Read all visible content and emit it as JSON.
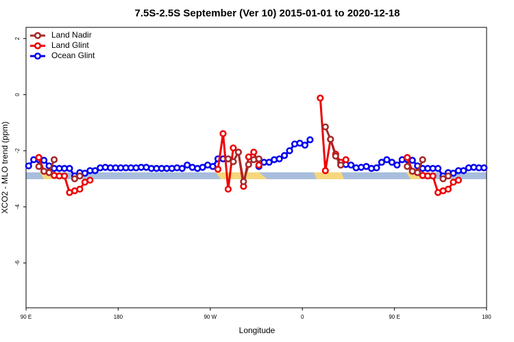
{
  "chart_data": {
    "type": "line",
    "title": "7.5S-2.5S September (Ver 10)   2015-01-01 to 2020-12-18",
    "x_label": "Longitude",
    "y_label": "XCO2 - MLO trend (ppm)",
    "xlim": [
      90,
      540
    ],
    "ylim": [
      -7.6,
      2.4
    ],
    "xticks": [
      {
        "value": 90,
        "label": "90 E"
      },
      180,
      {
        "value": 270,
        "label": "90 W"
      },
      {
        "value": 360,
        "label": "0"
      },
      {
        "value": 450,
        "label": "90 E"
      },
      {
        "value": 540,
        "label": "180"
      }
    ],
    "yticks": [
      -6,
      -4,
      -2,
      0,
      2
    ],
    "legend": "top-left",
    "x": [
      92.5,
      97.5,
      102.5,
      107.5,
      112.5,
      117.5,
      122.5,
      127.5,
      132.5,
      137.5,
      142.5,
      147.5,
      152.5,
      157.5,
      162.5,
      167.5,
      172.5,
      177.5,
      182.5,
      187.5,
      192.5,
      197.5,
      202.5,
      207.5,
      212.5,
      217.5,
      222.5,
      227.5,
      232.5,
      237.5,
      242.5,
      247.5,
      252.5,
      257.5,
      262.5,
      267.5,
      272.5,
      277.5,
      282.5,
      287.5,
      292.5,
      297.5,
      302.5,
      307.5,
      312.5,
      317.5,
      322.5,
      327.5,
      332.5,
      337.5,
      342.5,
      347.5,
      352.5,
      357.5,
      362.5,
      367.5,
      372.5,
      377.5,
      382.5,
      387.5,
      392.5,
      397.5,
      402.5,
      407.5,
      412.5,
      417.5,
      422.5,
      427.5,
      432.5,
      437.5,
      442.5,
      447.5,
      452.5,
      457.5,
      462.5,
      467.5,
      472.5,
      477.5,
      482.5,
      487.5,
      492.5,
      497.5,
      502.5,
      507.5,
      512.5,
      517.5,
      522.5,
      527.5,
      532.5,
      537.5
    ],
    "series": [
      {
        "name": "Land Nadir",
        "color": "#a52a2a",
        "values": [
          null,
          null,
          -2.56,
          -2.73,
          -2.78,
          -2.32,
          null,
          null,
          null,
          -3.0,
          -2.9,
          null,
          null,
          null,
          null,
          null,
          null,
          null,
          null,
          null,
          null,
          null,
          null,
          null,
          null,
          null,
          null,
          null,
          null,
          null,
          null,
          null,
          null,
          null,
          null,
          null,
          null,
          null,
          null,
          -2.29,
          -2.39,
          -2.05,
          -3.1,
          -2.49,
          -2.32,
          -2.29,
          null,
          null,
          null,
          null,
          null,
          null,
          null,
          null,
          null,
          null,
          null,
          null,
          -1.15,
          -1.59,
          -2.19,
          -2.51,
          null,
          null,
          null,
          null,
          null,
          null,
          null,
          null,
          null,
          null,
          null,
          null,
          -2.56,
          -2.73,
          -2.78,
          -2.32,
          null,
          null,
          null,
          -3.0,
          -2.9,
          null,
          null,
          null,
          null,
          null,
          null,
          null
        ]
      },
      {
        "name": "Land Glint",
        "color": "#ee0000",
        "values": [
          null,
          null,
          -2.24,
          -2.73,
          -2.76,
          -2.88,
          -2.9,
          -2.9,
          -3.49,
          -3.43,
          -3.37,
          -3.12,
          -3.05,
          null,
          null,
          null,
          null,
          null,
          null,
          null,
          null,
          null,
          null,
          null,
          null,
          null,
          null,
          null,
          null,
          null,
          null,
          null,
          null,
          null,
          null,
          null,
          null,
          -2.66,
          -1.39,
          -3.37,
          -1.9,
          -2.05,
          -3.27,
          -2.22,
          -2.05,
          -2.51,
          null,
          null,
          null,
          null,
          null,
          null,
          null,
          null,
          null,
          null,
          null,
          -0.12,
          -2.71,
          -1.59,
          -2.12,
          -2.41,
          -2.32,
          null,
          null,
          null,
          null,
          null,
          null,
          null,
          null,
          null,
          null,
          null,
          -2.24,
          -2.73,
          -2.76,
          -2.88,
          -2.9,
          -2.9,
          -3.49,
          -3.43,
          -3.37,
          -3.12,
          -3.05,
          null,
          null,
          null,
          null,
          null
        ]
      },
      {
        "name": "Ocean Glint",
        "color": "#0000ee",
        "values": [
          -2.54,
          -2.32,
          -2.32,
          -2.34,
          -2.54,
          -2.63,
          -2.63,
          -2.63,
          -2.63,
          -2.9,
          -2.78,
          -2.8,
          -2.71,
          -2.71,
          -2.61,
          -2.59,
          -2.61,
          -2.61,
          -2.61,
          -2.61,
          -2.61,
          -2.61,
          -2.59,
          -2.59,
          -2.63,
          -2.63,
          -2.63,
          -2.63,
          -2.63,
          -2.61,
          -2.63,
          -2.51,
          -2.59,
          -2.63,
          -2.59,
          -2.51,
          -2.56,
          -2.29,
          -2.29,
          -2.29,
          null,
          null,
          null,
          null,
          null,
          -2.56,
          -2.41,
          -2.41,
          -2.32,
          -2.29,
          -2.17,
          -2.0,
          -1.76,
          -1.73,
          -1.8,
          -1.61,
          null,
          null,
          null,
          null,
          null,
          -2.51,
          -2.49,
          -2.51,
          -2.61,
          -2.59,
          -2.56,
          -2.63,
          -2.61,
          -2.41,
          -2.32,
          -2.41,
          -2.51,
          -2.32,
          -2.32,
          -2.34,
          -2.54,
          -2.63,
          -2.63,
          -2.63,
          -2.63,
          -2.9,
          -2.78,
          -2.8,
          -2.71,
          -2.71,
          -2.61,
          -2.59,
          -2.61,
          -2.61
        ]
      }
    ]
  }
}
